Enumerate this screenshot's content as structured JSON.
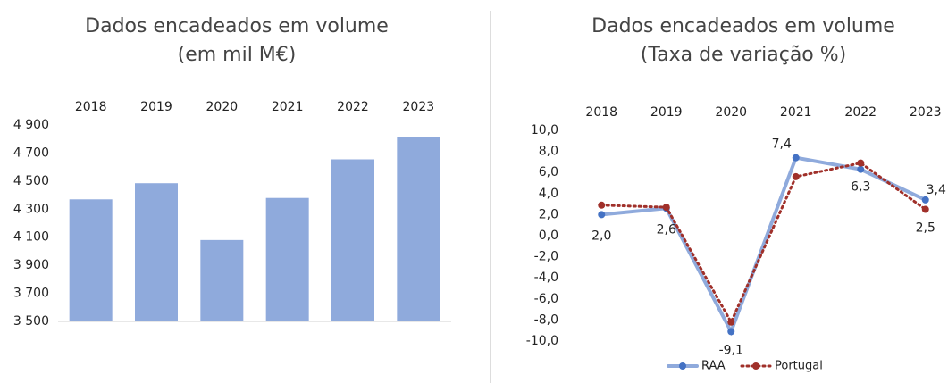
{
  "chart_data": [
    {
      "type": "bar",
      "title": "Dados encadeados em volume",
      "subtitle": "(em mil M€)",
      "categories": [
        "2018",
        "2019",
        "2020",
        "2021",
        "2022",
        "2023"
      ],
      "values": [
        4370,
        4485,
        4080,
        4380,
        4655,
        4815
      ],
      "color": "#8faadc",
      "ylim": [
        3500,
        4900
      ],
      "yticks": [
        {
          "value": 3500,
          "label": "3 500"
        },
        {
          "value": 3700,
          "label": "3 700"
        },
        {
          "value": 3900,
          "label": "3 900"
        },
        {
          "value": 4100,
          "label": "4 100"
        },
        {
          "value": 4300,
          "label": "4 300"
        },
        {
          "value": 4500,
          "label": "4 500"
        },
        {
          "value": 4700,
          "label": "4 700"
        },
        {
          "value": 4900,
          "label": "4 900"
        }
      ],
      "grid": false
    },
    {
      "type": "line",
      "title": "Dados encadeados em volume",
      "subtitle": "(Taxa de variação %)",
      "categories": [
        "2018",
        "2019",
        "2020",
        "2021",
        "2022",
        "2023"
      ],
      "series": [
        {
          "name": "RAA",
          "color": "#8faadc",
          "marker_color": "#4472c4",
          "values": [
            2.0,
            2.6,
            -9.1,
            7.4,
            6.3,
            3.4
          ],
          "value_labels": [
            "2,0",
            "2,6",
            "-9,1",
            "7,4",
            "6,3",
            "3,4"
          ]
        },
        {
          "name": "Portugal",
          "color": "#a0302a",
          "marker_color": "#a0302a",
          "values": [
            2.9,
            2.7,
            -8.2,
            5.6,
            6.9,
            2.5
          ],
          "value_labels": [
            null,
            null,
            null,
            null,
            null,
            "2,5"
          ]
        }
      ],
      "ylim": [
        -10,
        10
      ],
      "yticks": [
        {
          "value": -10,
          "label": "-10,0"
        },
        {
          "value": -8,
          "label": "-8,0"
        },
        {
          "value": -6,
          "label": "-6,0"
        },
        {
          "value": -4,
          "label": "-4,0"
        },
        {
          "value": -2,
          "label": "-2,0"
        },
        {
          "value": 0,
          "label": "0,0"
        },
        {
          "value": 2,
          "label": "2,0"
        },
        {
          "value": 4,
          "label": "4,0"
        },
        {
          "value": 6,
          "label": "6,0"
        },
        {
          "value": 8,
          "label": "8,0"
        },
        {
          "value": 10,
          "label": "10,0"
        }
      ],
      "legend": "bottom"
    }
  ]
}
